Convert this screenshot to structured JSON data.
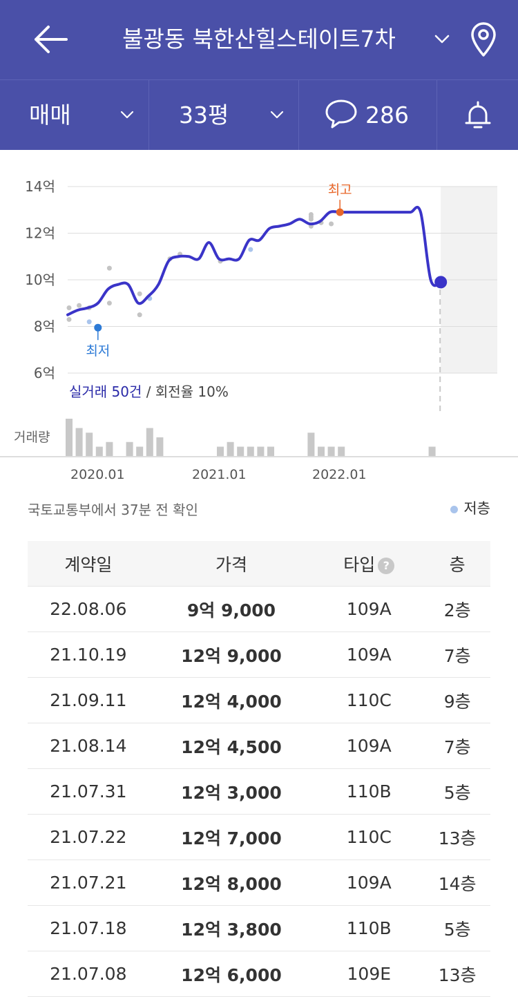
{
  "header": {
    "title": "불광동 북한산힐스테이트7차",
    "trade_type": "매매",
    "size": "33평",
    "comment_count": "286"
  },
  "chart": {
    "y_ticks": [
      "14억",
      "12억",
      "10억",
      "8억",
      "6억"
    ],
    "x_ticks": [
      "2020.01",
      "2021.01",
      "2022.01"
    ],
    "high_label": "최고",
    "low_label": "최저",
    "summary_count": "실거래 50건",
    "summary_rest": " / 회전율 10%",
    "volume_label": "거래량"
  },
  "chart_data": {
    "type": "line",
    "unit": "억",
    "ylim": [
      6,
      14
    ],
    "x_ticks": [
      "2020.01",
      "2021.01",
      "2022.01"
    ],
    "series": [
      {
        "x": [
          "2019.07",
          "2019.08",
          "2019.09",
          "2019.10",
          "2019.11",
          "2019.12",
          "2020.01",
          "2020.02",
          "2020.03",
          "2020.04",
          "2020.05",
          "2020.06",
          "2020.07",
          "2020.08",
          "2020.09",
          "2020.10",
          "2020.11",
          "2020.12",
          "2021.01",
          "2021.02",
          "2021.03",
          "2021.04",
          "2021.05",
          "2021.06",
          "2021.07",
          "2021.08",
          "2021.09",
          "2021.10",
          "2021.11",
          "2021.12",
          "2022.01",
          "2022.02",
          "2022.03",
          "2022.04",
          "2022.05",
          "2022.06",
          "2022.07",
          "2022.08"
        ],
        "values": [
          8.5,
          8.7,
          8.8,
          9.0,
          9.6,
          9.8,
          9.8,
          9.0,
          9.3,
          9.8,
          10.8,
          11.0,
          11.0,
          10.9,
          11.6,
          10.9,
          10.9,
          10.9,
          11.7,
          11.7,
          12.2,
          12.3,
          12.4,
          12.6,
          12.4,
          12.5,
          12.9,
          12.9,
          12.9,
          12.9,
          12.9,
          12.9,
          12.9,
          12.9,
          12.9,
          12.9,
          10.0,
          9.9
        ]
      }
    ],
    "annotations": [
      {
        "label": "최고",
        "x": "2021.10",
        "value": 12.9
      },
      {
        "label": "최저",
        "x": "2019.10",
        "value": 7.95
      }
    ],
    "transactions": [
      {
        "x": "2019.07",
        "value": 8.3
      },
      {
        "x": "2019.07",
        "value": 8.8
      },
      {
        "x": "2019.08",
        "value": 8.9
      },
      {
        "x": "2019.09",
        "value": 8.8
      },
      {
        "x": "2019.09",
        "value": 8.2,
        "low_floor": true
      },
      {
        "x": "2019.11",
        "value": 9.0
      },
      {
        "x": "2019.11",
        "value": 10.5
      },
      {
        "x": "2020.02",
        "value": 8.5
      },
      {
        "x": "2020.02",
        "value": 9.4
      },
      {
        "x": "2020.03",
        "value": 9.2,
        "low_floor": true
      },
      {
        "x": "2020.05",
        "value": 10.9
      },
      {
        "x": "2020.06",
        "value": 11.1
      },
      {
        "x": "2020.10",
        "value": 10.8
      },
      {
        "x": "2021.01",
        "value": 11.3,
        "low_floor": true
      },
      {
        "x": "2021.07",
        "value": 12.3
      },
      {
        "x": "2021.07",
        "value": 12.6
      },
      {
        "x": "2021.07",
        "value": 12.7
      },
      {
        "x": "2021.07",
        "value": 12.8
      },
      {
        "x": "2021.08",
        "value": 12.45
      },
      {
        "x": "2021.09",
        "value": 12.4
      }
    ],
    "volume": [
      {
        "x": "2019.07",
        "count": 4
      },
      {
        "x": "2019.08",
        "count": 3
      },
      {
        "x": "2019.09",
        "count": 2.5
      },
      {
        "x": "2019.10",
        "count": 1
      },
      {
        "x": "2019.11",
        "count": 1.5
      },
      {
        "x": "2020.01",
        "count": 1.5
      },
      {
        "x": "2020.02",
        "count": 1
      },
      {
        "x": "2020.03",
        "count": 3
      },
      {
        "x": "2020.04",
        "count": 2
      },
      {
        "x": "2020.10",
        "count": 1
      },
      {
        "x": "2020.11",
        "count": 1.5
      },
      {
        "x": "2020.12",
        "count": 1
      },
      {
        "x": "2021.01",
        "count": 1
      },
      {
        "x": "2021.02",
        "count": 1
      },
      {
        "x": "2021.03",
        "count": 1
      },
      {
        "x": "2021.07",
        "count": 2.5
      },
      {
        "x": "2021.08",
        "count": 1
      },
      {
        "x": "2021.09",
        "count": 1
      },
      {
        "x": "2021.10",
        "count": 1
      },
      {
        "x": "2022.07",
        "count": 1
      }
    ]
  },
  "source": "국토교통부에서 37분 전 확인",
  "legend": {
    "low_floor": "저층"
  },
  "colors": {
    "primary": "#4a50a8",
    "line": "#3a34c8",
    "high": "#e8672a",
    "low": "#2c7ad6",
    "low_floor_dot": "#a9c4ec"
  },
  "table": {
    "headers": {
      "date": "계약일",
      "price": "가격",
      "type": "타입",
      "floor": "층"
    },
    "rows": [
      {
        "date": "22.08.06",
        "price": "9억 9,000",
        "type": "109A",
        "floor": "2층"
      },
      {
        "date": "21.10.19",
        "price": "12억 9,000",
        "type": "109A",
        "floor": "7층"
      },
      {
        "date": "21.09.11",
        "price": "12억 4,000",
        "type": "110C",
        "floor": "9층"
      },
      {
        "date": "21.08.14",
        "price": "12억 4,500",
        "type": "109A",
        "floor": "7층"
      },
      {
        "date": "21.07.31",
        "price": "12억 3,000",
        "type": "110B",
        "floor": "5층"
      },
      {
        "date": "21.07.22",
        "price": "12억 7,000",
        "type": "110C",
        "floor": "13층"
      },
      {
        "date": "21.07.21",
        "price": "12억 8,000",
        "type": "109A",
        "floor": "14층"
      },
      {
        "date": "21.07.18",
        "price": "12억 3,800",
        "type": "110B",
        "floor": "5층"
      },
      {
        "date": "21.07.08",
        "price": "12억 6,000",
        "type": "109E",
        "floor": "13층"
      }
    ]
  }
}
